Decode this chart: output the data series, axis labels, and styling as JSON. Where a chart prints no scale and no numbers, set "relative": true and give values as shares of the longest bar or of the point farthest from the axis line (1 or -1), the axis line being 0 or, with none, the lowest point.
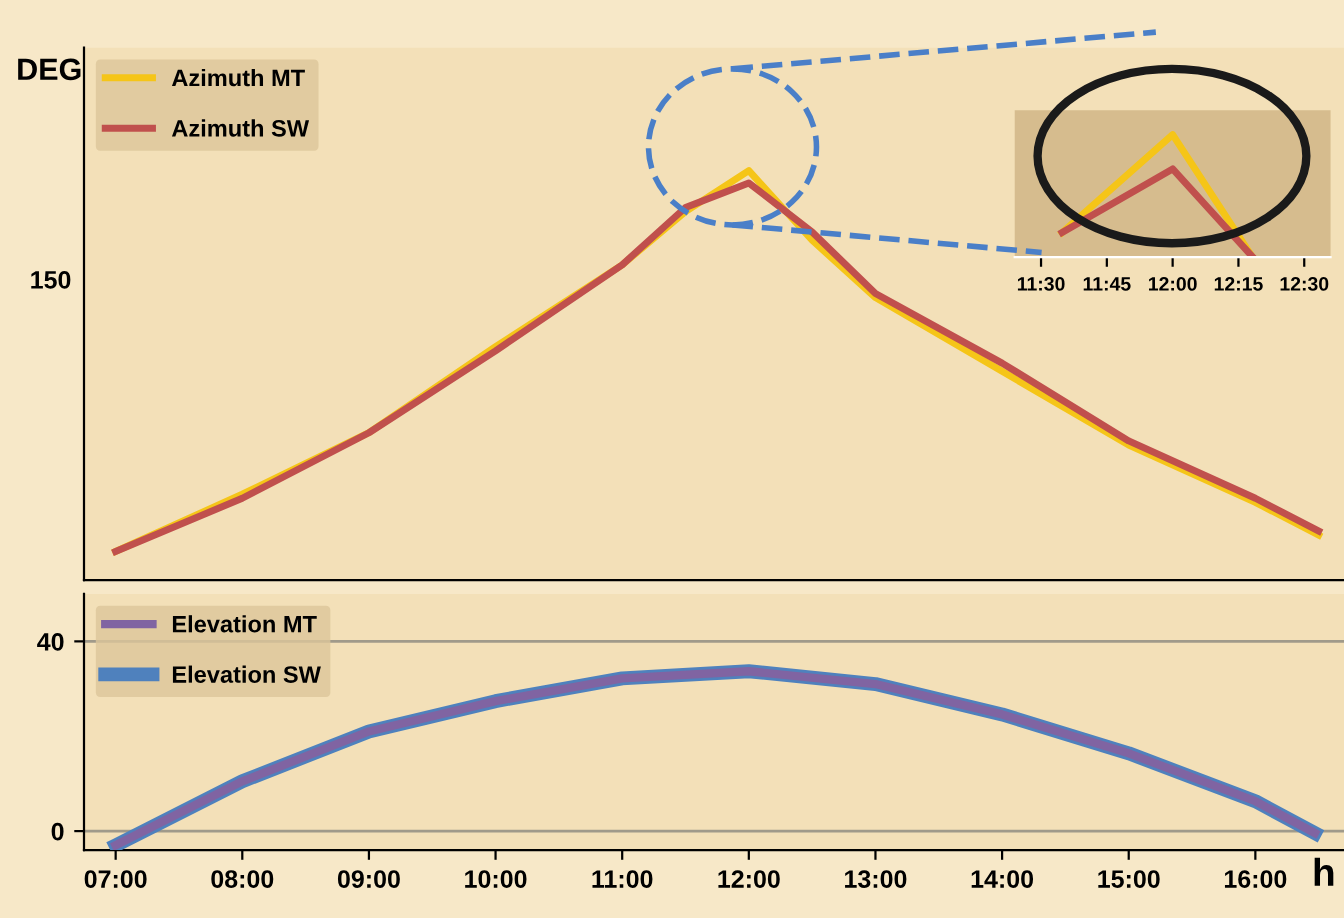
{
  "chart_data": [
    {
      "type": "line",
      "ylabel": "DEG",
      "relative": true,
      "tick_labels": false,
      "legend": "top left",
      "xlim": [
        6.75,
        16.7
      ],
      "annotations": [
        "150"
      ],
      "series": [
        {
          "name": "Azimuth MT",
          "color": "#f5c518",
          "x": [
            7.0,
            8.0,
            9.0,
            10.0,
            11.0,
            11.5,
            12.0,
            12.5,
            13.0,
            14.0,
            15.0,
            16.0,
            16.5
          ],
          "values": [
            0.07,
            0.21,
            0.36,
            0.57,
            0.77,
            0.9,
            1,
            0.83,
            0.69,
            0.51,
            0.33,
            0.19,
            0.11
          ]
        },
        {
          "name": "Azimuth SW",
          "color": "#c0504d",
          "x": [
            7.0,
            8.0,
            9.0,
            10.0,
            11.0,
            11.5,
            12.0,
            12.5,
            13.0,
            14.0,
            15.0,
            16.0,
            16.5
          ],
          "values": [
            0.07,
            0.2,
            0.36,
            0.56,
            0.77,
            0.91,
            0.97,
            0.85,
            0.7,
            0.53,
            0.34,
            0.2,
            0.12
          ]
        }
      ]
    },
    {
      "type": "line",
      "relative": true,
      "tick_labels": "x",
      "xlim": [
        11.4,
        12.6
      ],
      "xticks": [
        {
          "value": 11.5,
          "label": "11:30"
        },
        {
          "value": 11.75,
          "label": "11:45"
        },
        {
          "value": 12.0,
          "label": "12:00"
        },
        {
          "value": 12.25,
          "label": "12:15"
        },
        {
          "value": 12.5,
          "label": "12:30"
        }
      ],
      "series": [
        {
          "color": "#f5c518",
          "x": [
            11.58,
            12.0,
            12.3
          ],
          "values": [
            0.2,
            1,
            0.01
          ]
        },
        {
          "color": "#c0504d",
          "x": [
            11.58,
            12.0,
            12.3
          ],
          "values": [
            0.2,
            0.72,
            0.01
          ]
        }
      ]
    },
    {
      "type": "line",
      "xlabel": "h",
      "legend": "top left",
      "grid": "y",
      "xlim": [
        6.75,
        16.7
      ],
      "ylim": [
        -4,
        50
      ],
      "yticks": [
        0,
        40
      ],
      "xticks": [
        {
          "value": 7,
          "label": "07:00"
        },
        {
          "value": 8,
          "label": "08:00"
        },
        {
          "value": 9,
          "label": "09:00"
        },
        {
          "value": 10,
          "label": "10:00"
        },
        {
          "value": 11,
          "label": "11:00"
        },
        {
          "value": 12,
          "label": "12:00"
        },
        {
          "value": 13,
          "label": "13:00"
        },
        {
          "value": 14,
          "label": "14:00"
        },
        {
          "value": 15,
          "label": "15:00"
        },
        {
          "value": 16,
          "label": "16:00"
        }
      ],
      "series": [
        {
          "name": "Elevation MT",
          "color": "#8064a2",
          "x": [
            7.0,
            8.0,
            9.0,
            10.0,
            11.0,
            12.0,
            13.0,
            14.0,
            15.0,
            16.0,
            16.47
          ],
          "values": [
            -3,
            10.5,
            21,
            27.4,
            32.2,
            33.7,
            31,
            24.6,
            16.4,
            6.3,
            -0.4
          ]
        },
        {
          "name": "Elevation SW",
          "color": "#4f81bd",
          "x": [
            7.0,
            8.0,
            9.0,
            10.0,
            11.0,
            12.0,
            13.0,
            14.0,
            15.0,
            16.0,
            16.47
          ],
          "values": [
            -3,
            10.5,
            21,
            27.4,
            32.2,
            33.7,
            31,
            24.6,
            16.4,
            6.3,
            -0.4
          ]
        }
      ]
    }
  ]
}
